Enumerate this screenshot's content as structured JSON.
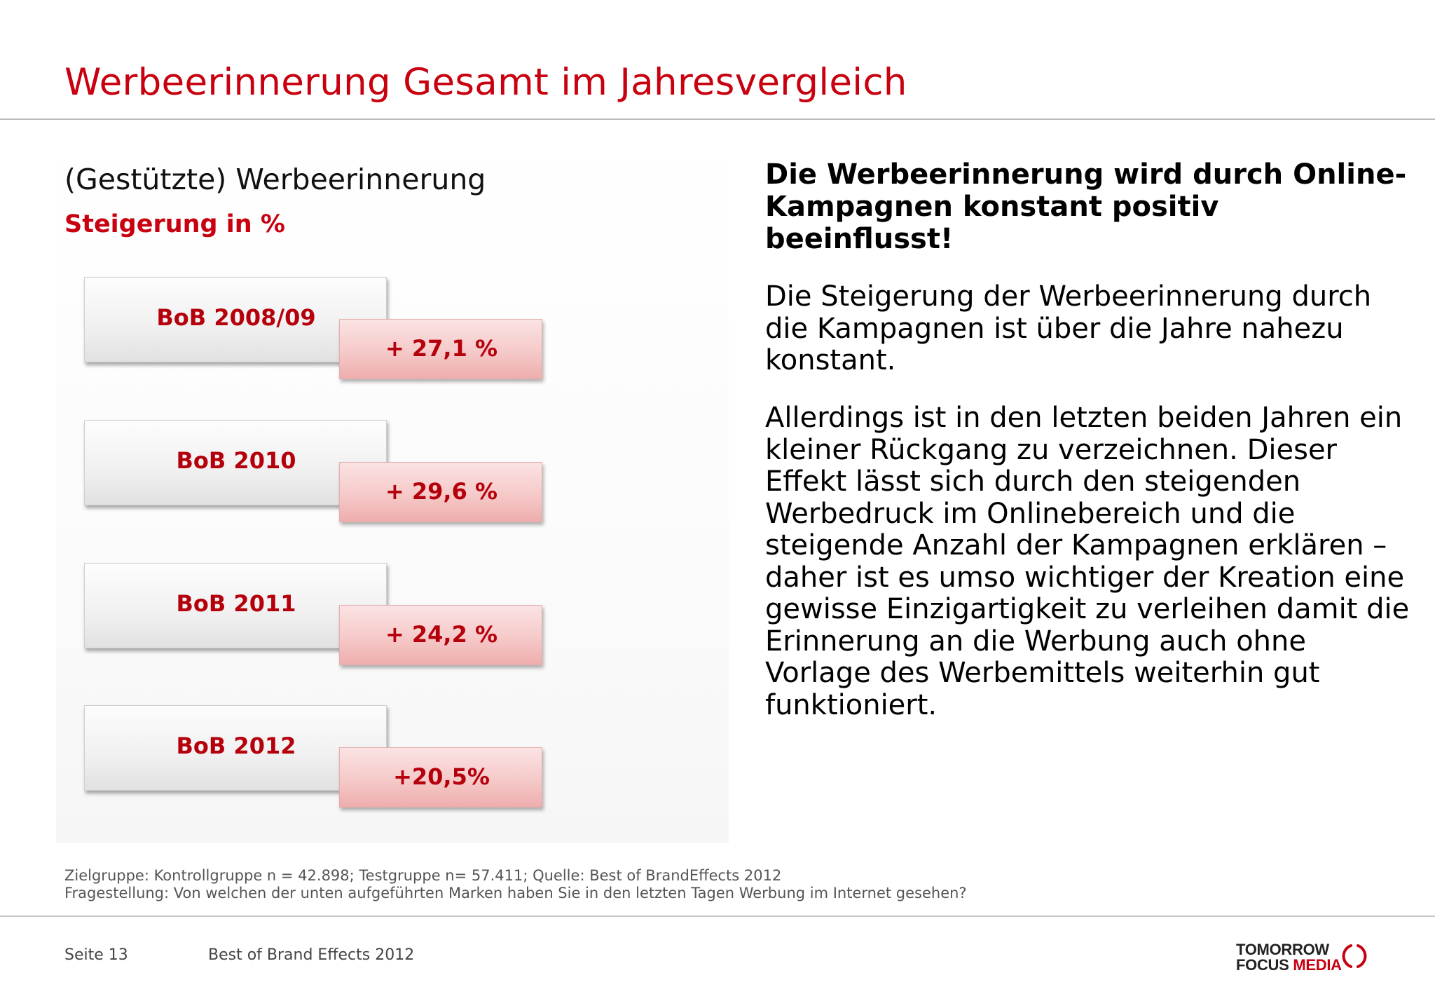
{
  "slide": {
    "title": "Werbeerinnerung Gesamt im Jahresvergleich",
    "accent_color": "#c8000f"
  },
  "chart": {
    "subtitle": "(Gestützte) Werbeerinnerung",
    "unit_label": "Steigerung in %",
    "rows": [
      {
        "label": "BoB 2008/09",
        "value_text": "+ 27,1 %"
      },
      {
        "label": "BoB 2010",
        "value_text": "+ 29,6 %"
      },
      {
        "label": "BoB 2011",
        "value_text": "+ 24,2 %"
      },
      {
        "label": "BoB 2012",
        "value_text": "+20,5%"
      }
    ]
  },
  "text": {
    "headline": "Die Werbeerinnerung wird durch Online-Kampagnen konstant positiv beeinflusst!",
    "paragraph1": "Die Steigerung der Werbeerinnerung durch die Kampagnen ist über die Jahre nahezu konstant.",
    "paragraph2": "Allerdings ist in den letzten beiden Jahren ein kleiner Rückgang zu verzeichnen. Dieser Effekt lässt sich durch den steigenden Werbedruck im Onlinebereich und die steigende Anzahl der Kampagnen erklären – daher ist es umso wichtiger der Kreation eine gewisse Einzigartigkeit zu verleihen damit die Erinnerung an die Werbung auch ohne Vorlage des Werbemittels weiterhin gut funktioniert."
  },
  "footnotes": {
    "line1": "Zielgruppe: Kontrollgruppe n = 42.898; Testgruppe n= 57.411; Quelle: Best of BrandEffects 2012",
    "line2": "Fragestellung: Von welchen der unten aufgeführten Marken haben Sie in den letzten Tagen Werbung im Internet gesehen?"
  },
  "footer": {
    "page": "Seite 13",
    "document": "Best of Brand Effects 2012",
    "logo_line1": "TOMORROW",
    "logo_line2_a": "FOCUS",
    "logo_line2_b": "MEDIA",
    "logo_icon": "bracket-circle-logo-icon"
  }
}
